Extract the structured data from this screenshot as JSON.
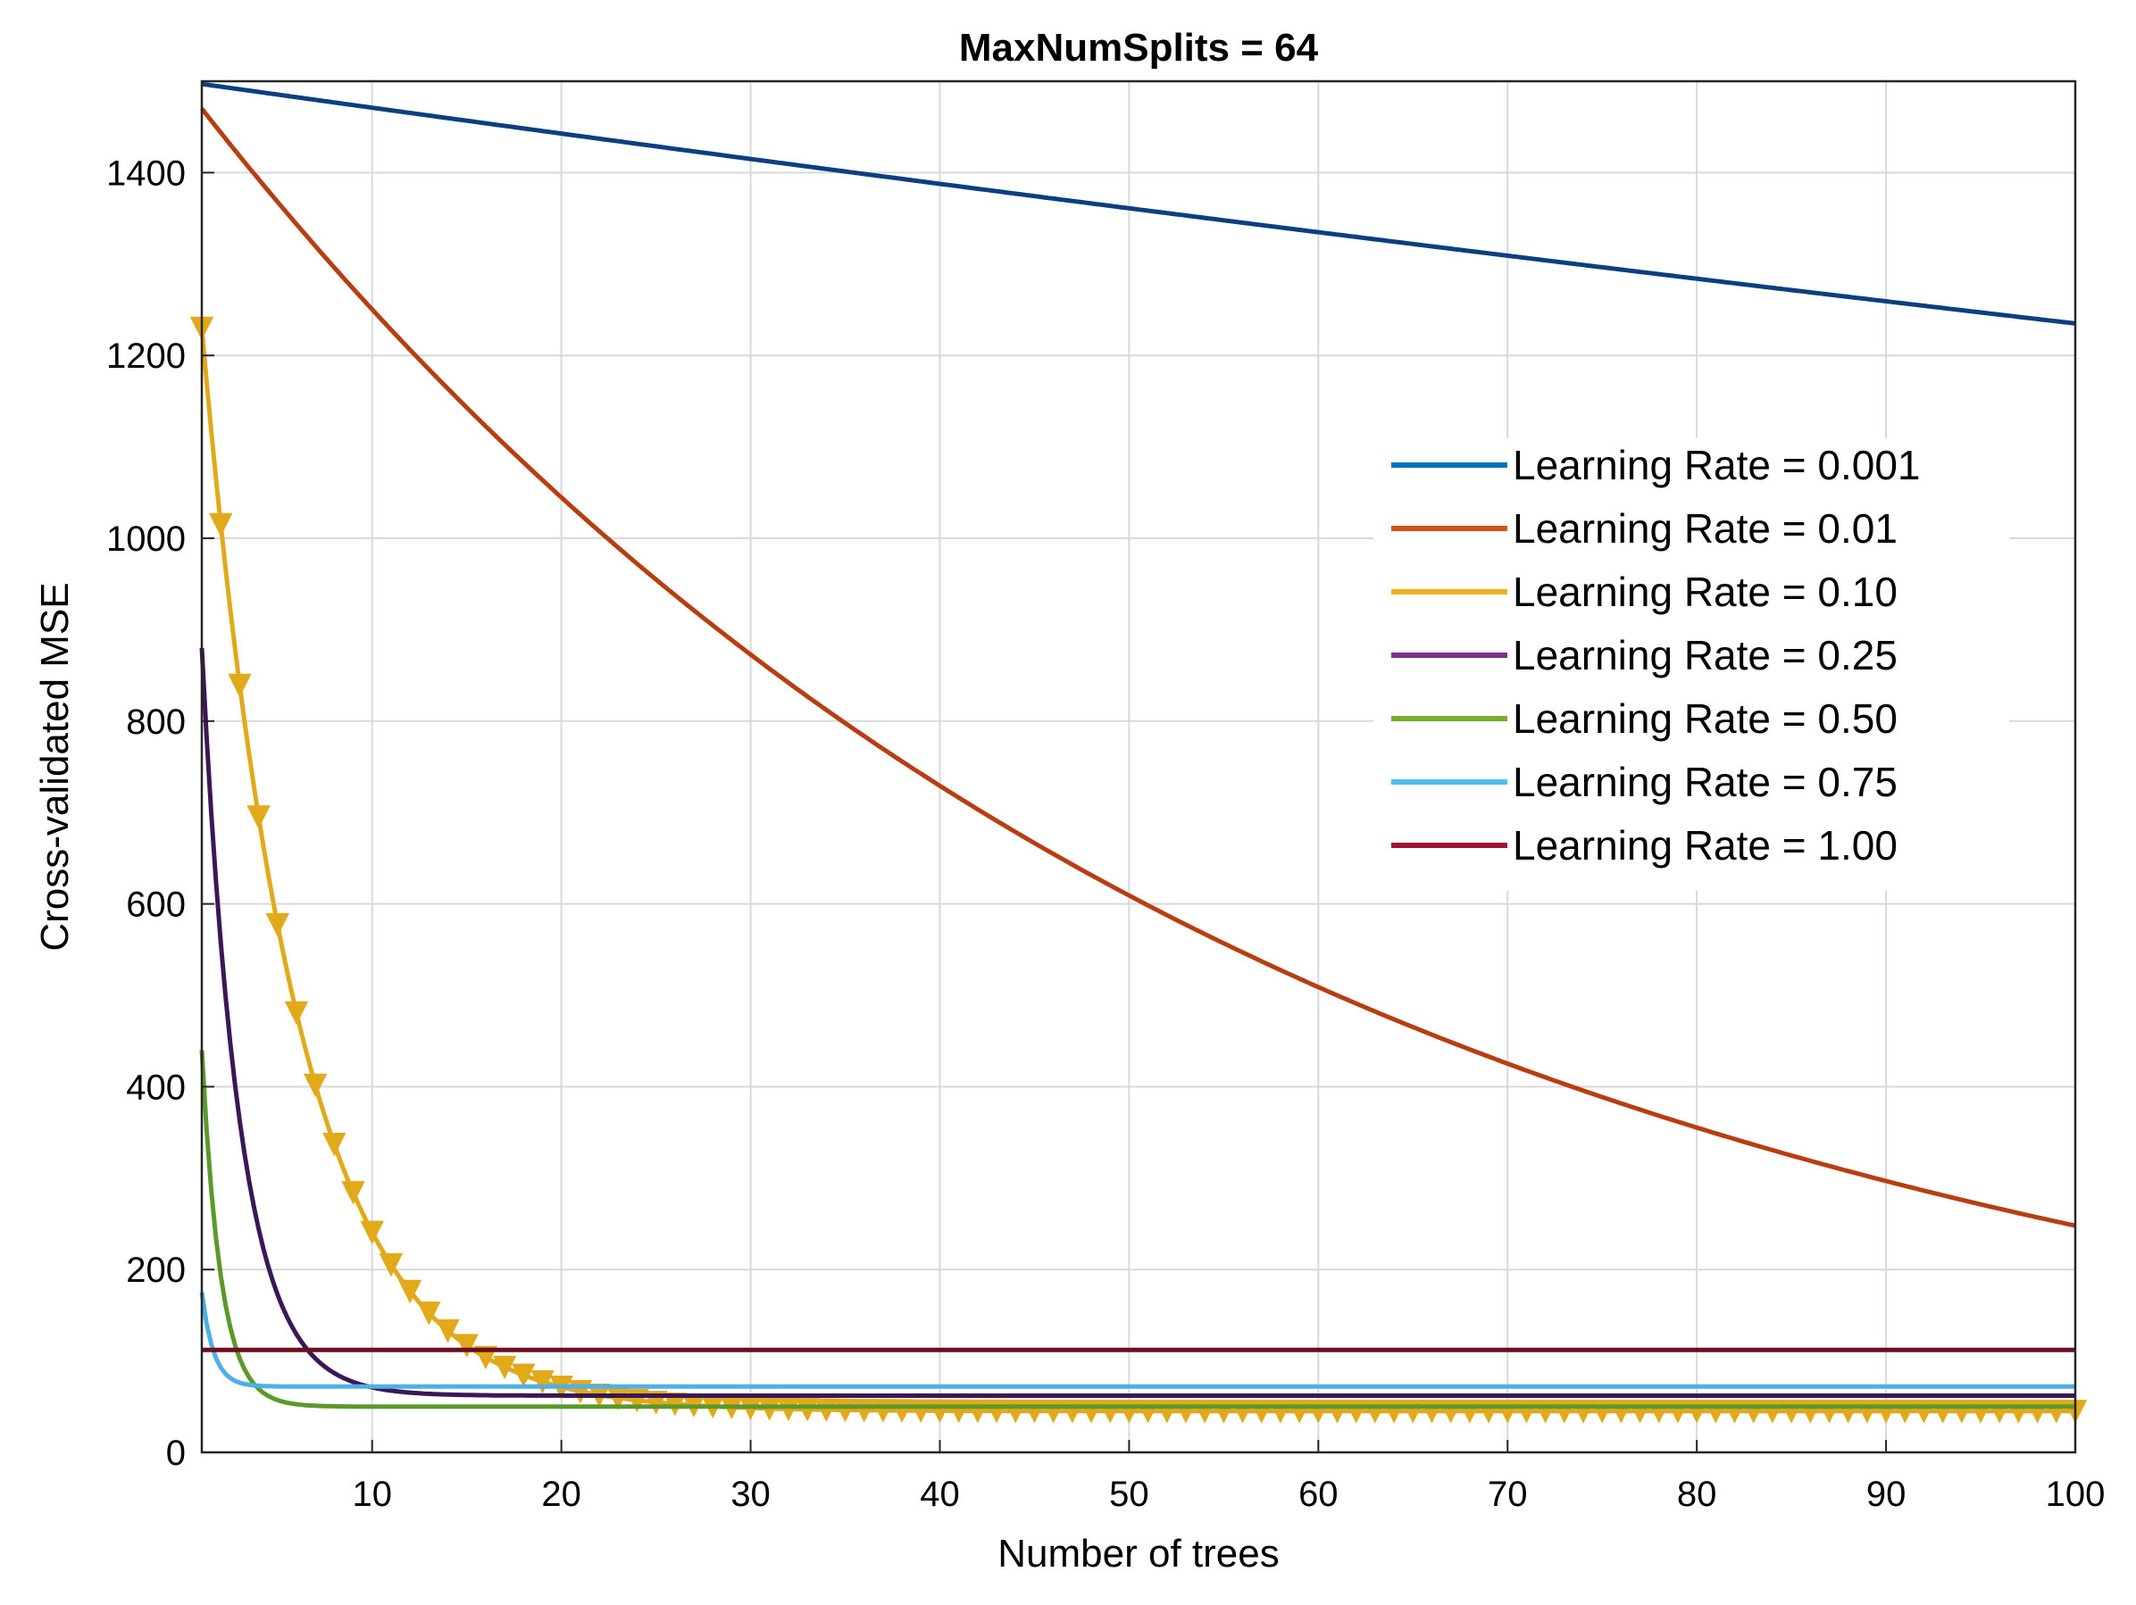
{
  "chart_data": {
    "type": "line",
    "title": "MaxNumSplits = 64",
    "xlabel": "Number of trees",
    "ylabel": "Cross-validated MSE",
    "xlim": [
      1,
      100
    ],
    "ylim": [
      0,
      1500
    ],
    "xticks": [
      10,
      20,
      30,
      40,
      50,
      60,
      70,
      80,
      90,
      100
    ],
    "yticks": [
      0,
      200,
      400,
      600,
      800,
      1000,
      1200,
      1400
    ],
    "grid": true,
    "legend_position": "right",
    "series": [
      {
        "name": "Learning Rate = 0.001",
        "color": "#0072BD",
        "draw_color": "#0b3f80",
        "x_start": 1,
        "x_end": 100,
        "y_start": 1497,
        "y_end": 1235,
        "floor": 0,
        "marker": "none"
      },
      {
        "name": "Learning Rate = 0.01",
        "color": "#D95319",
        "draw_color": "#b83d10",
        "x_start": 1,
        "x_end": 100,
        "y_start": 1470,
        "y_end": 248,
        "floor": 0,
        "marker": "none"
      },
      {
        "name": "Learning Rate = 0.10",
        "color": "#EDB120",
        "draw_color": "#e2a91a",
        "x_start": 1,
        "x_end": 100,
        "y_start": 1230,
        "y_end": 45,
        "floor": 45,
        "marker": "triangle-down"
      },
      {
        "name": "Learning Rate = 0.25",
        "color": "#7E2F8E",
        "draw_color": "#3b1758",
        "x_start": 1,
        "x_end": 100,
        "y_start": 880,
        "y_end": 62,
        "floor": 62,
        "marker": "none"
      },
      {
        "name": "Learning Rate = 0.50",
        "color": "#77AC30",
        "draw_color": "#5b9a2a",
        "x_start": 1,
        "x_end": 100,
        "y_start": 440,
        "y_end": 50,
        "floor": 50,
        "marker": "none"
      },
      {
        "name": "Learning Rate = 0.75",
        "color": "#4DBEEE",
        "draw_color": "#4db0e6",
        "x_start": 1,
        "x_end": 100,
        "y_start": 175,
        "y_end": 72,
        "floor": 72,
        "marker": "none"
      },
      {
        "name": "Learning Rate = 1.00",
        "color": "#A2142F",
        "draw_color": "#6b0f1e",
        "x_start": 1,
        "x_end": 100,
        "y_start": 112,
        "y_end": 112,
        "floor": 112,
        "marker": "none"
      }
    ]
  }
}
